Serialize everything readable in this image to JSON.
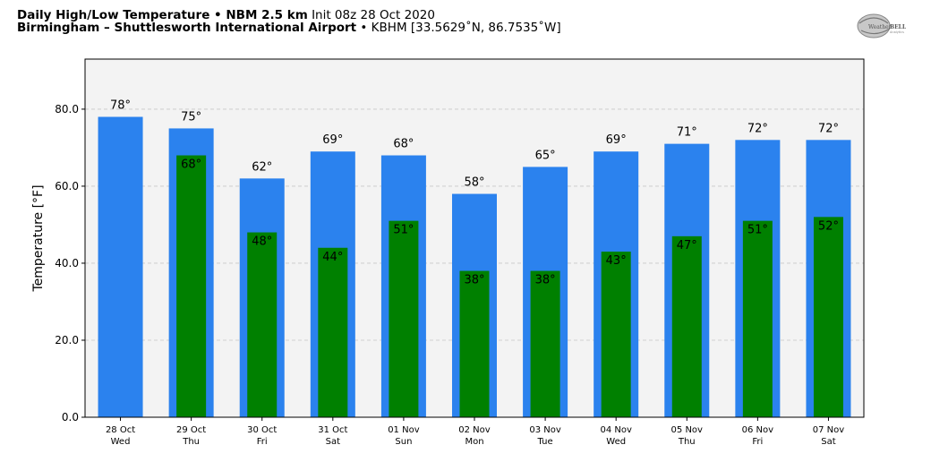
{
  "header": {
    "line1_title": "Daily High/Low Temperature • NBM 2.5 km",
    "line1_init": "Init 08z 28 Oct 2020",
    "line2_site": "Birmingham – Shuttlesworth International Airport",
    "line2_info": " • KBHM [33.5629˚N, 86.7535˚W]"
  },
  "logo": {
    "text_left": "Weather",
    "text_right": "BELL",
    "sub": "Analytics"
  },
  "colors": {
    "high": "#2b82ee",
    "low": "#008000",
    "plot_bg": "#f3f3f3"
  },
  "chart_data": {
    "type": "bar",
    "ylabel": "Temperature [°F]",
    "ylim": [
      0,
      93
    ],
    "yticks": [
      "0.0",
      "20.0",
      "40.0",
      "60.0",
      "80.0"
    ],
    "grid": true,
    "categories": [
      {
        "date": "28 Oct",
        "day": "Wed"
      },
      {
        "date": "29 Oct",
        "day": "Thu"
      },
      {
        "date": "30 Oct",
        "day": "Fri"
      },
      {
        "date": "31 Oct",
        "day": "Sat"
      },
      {
        "date": "01 Nov",
        "day": "Sun"
      },
      {
        "date": "02 Nov",
        "day": "Mon"
      },
      {
        "date": "03 Nov",
        "day": "Tue"
      },
      {
        "date": "04 Nov",
        "day": "Wed"
      },
      {
        "date": "05 Nov",
        "day": "Thu"
      },
      {
        "date": "06 Nov",
        "day": "Fri"
      },
      {
        "date": "07 Nov",
        "day": "Sat"
      }
    ],
    "series": [
      {
        "values": [
          78,
          75,
          62,
          69,
          68,
          58,
          65,
          69,
          71,
          72,
          72
        ],
        "labels": [
          "78°",
          "75°",
          "62°",
          "69°",
          "68°",
          "58°",
          "65°",
          "69°",
          "71°",
          "72°",
          "72°"
        ]
      },
      {
        "values": [
          null,
          68,
          48,
          44,
          51,
          38,
          38,
          43,
          47,
          51,
          52
        ],
        "labels": [
          null,
          "68°",
          "48°",
          "44°",
          "51°",
          "38°",
          "38°",
          "43°",
          "47°",
          "51°",
          "52°"
        ]
      }
    ]
  }
}
